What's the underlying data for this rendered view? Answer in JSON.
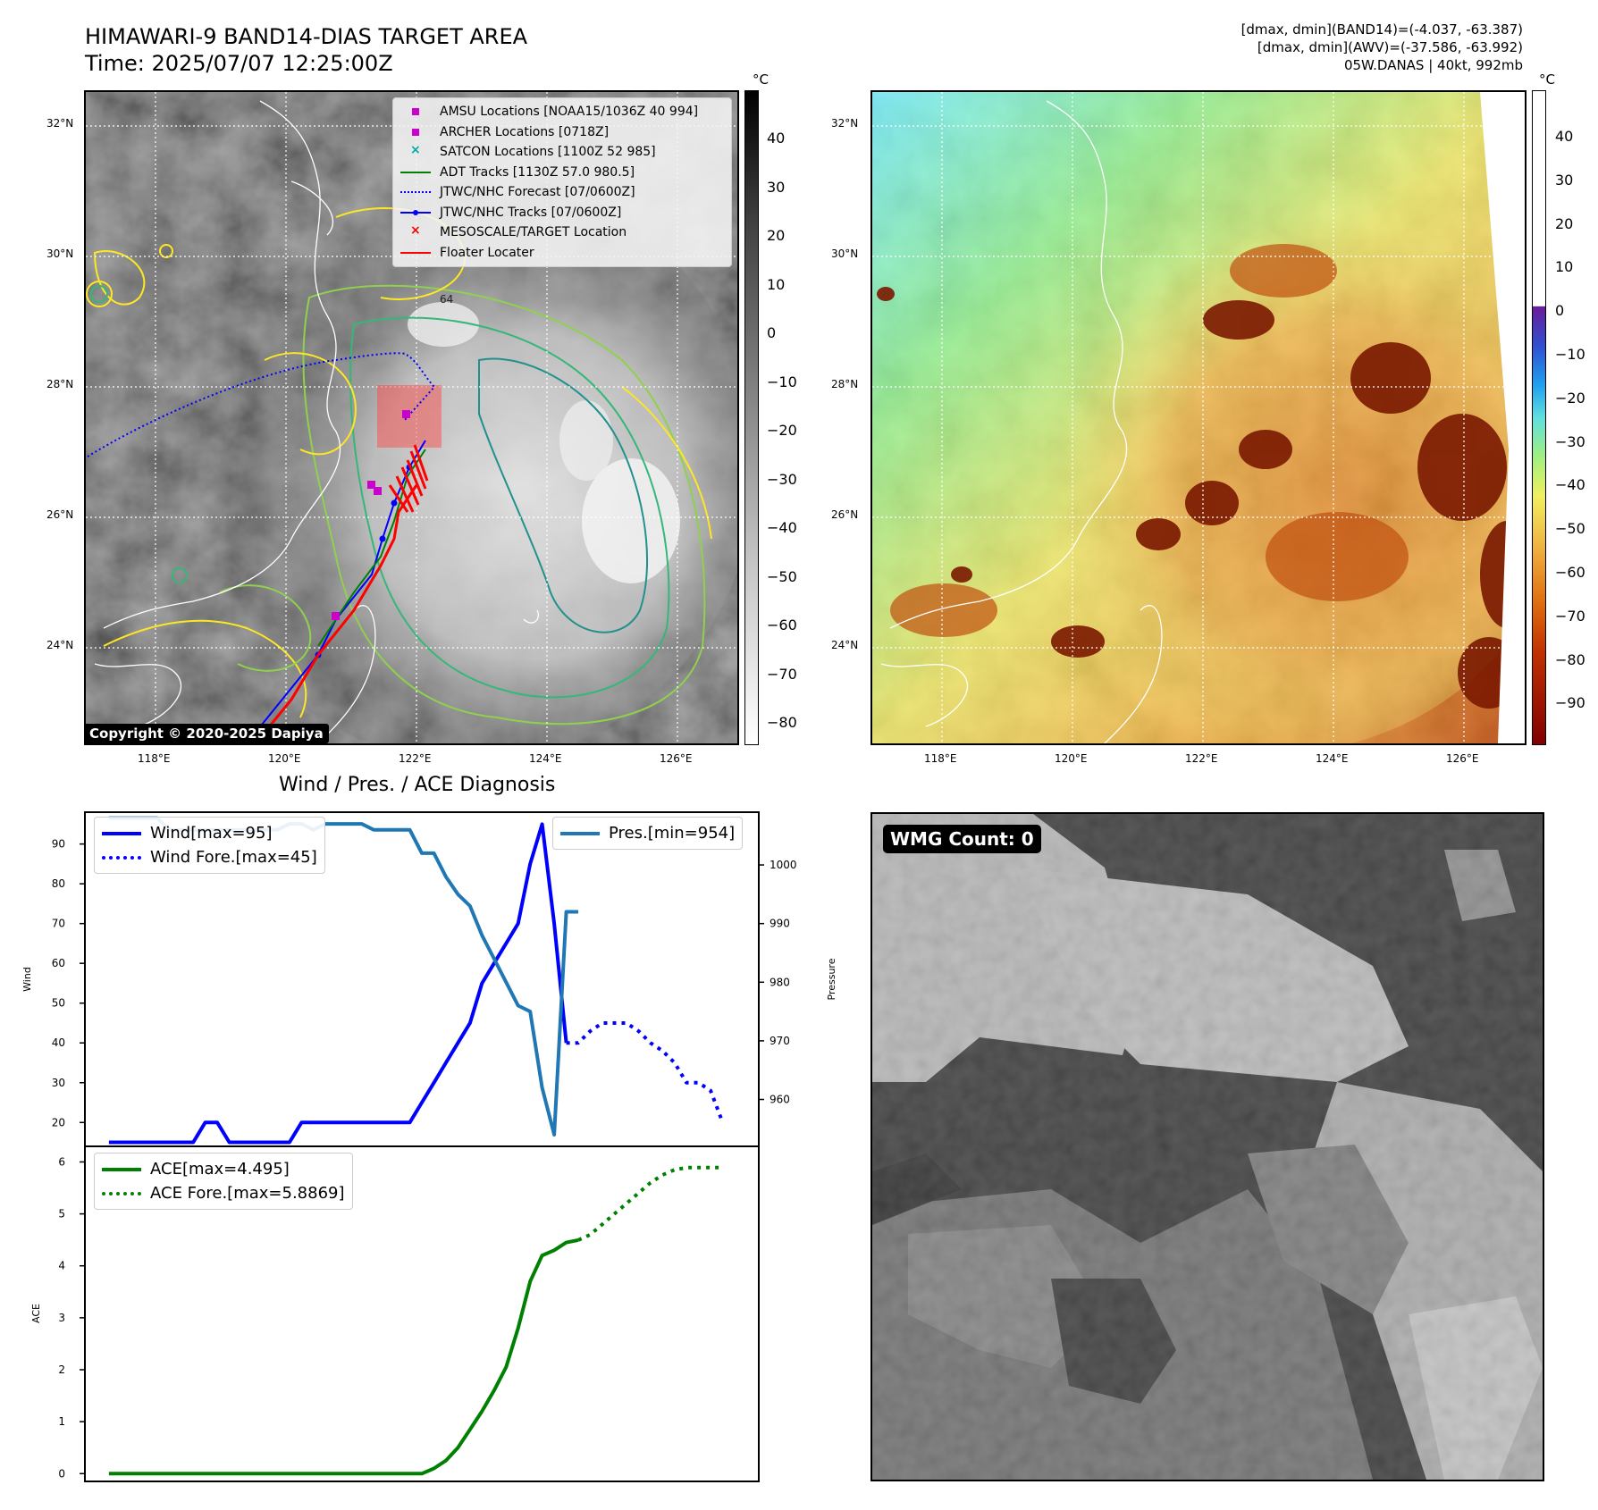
{
  "header": {
    "title_line1": "HIMAWARI-9 BAND14-DIAS TARGET AREA",
    "title_line2": "Time: 2025/07/07 12:25:00Z",
    "info_line1": "[dmax, dmin](BAND14)=(-4.037, -63.387)",
    "info_line2": "[dmax, dmin](AWV)=(-37.586, -63.992)",
    "info_line3": "05W.DANAS | 40kt, 992mb"
  },
  "map": {
    "lat_labels": [
      "32°N",
      "30°N",
      "28°N",
      "26°N",
      "24°N"
    ],
    "lon_labels": [
      "118°E",
      "120°E",
      "122°E",
      "124°E",
      "126°E"
    ],
    "copyright": "Copyright © 2020-2025 Dapiya",
    "contour_label": "64",
    "legend": [
      {
        "label": "AMSU Locations [NOAA15/1036Z 40 994]",
        "symbol": "square",
        "color": "#cc00cc"
      },
      {
        "label": "ARCHER Locations [0718Z]",
        "symbol": "square",
        "color": "#cc00cc"
      },
      {
        "label": "SATCON Locations [1100Z 52 985]",
        "symbol": "x",
        "color": "#00aaaa"
      },
      {
        "label": "ADT Tracks [1130Z 57.0 980.5]",
        "symbol": "line",
        "color": "#008000"
      },
      {
        "label": "JTWC/NHC Forecast [07/0600Z]",
        "symbol": "dotted",
        "color": "#0000ff"
      },
      {
        "label": "JTWC/NHC Tracks [07/0600Z]",
        "symbol": "line-dot",
        "color": "#0000ff"
      },
      {
        "label": "MESOSCALE/TARGET Location",
        "symbol": "x",
        "color": "#ff0000"
      },
      {
        "label": "Floater Locater",
        "symbol": "line",
        "color": "#ff0000"
      }
    ]
  },
  "colorbar_gray": {
    "unit": "°C",
    "labels": [
      "40",
      "30",
      "20",
      "10",
      "0",
      "−10",
      "−20",
      "−30",
      "−40",
      "−50",
      "−60",
      "−70",
      "−80"
    ]
  },
  "colorbar_color": {
    "unit": "°C",
    "labels": [
      "40",
      "30",
      "20",
      "10",
      "0",
      "−10",
      "−20",
      "−30",
      "−40",
      "−50",
      "−60",
      "−70",
      "−80",
      "−90"
    ]
  },
  "wmg": {
    "badge": "WMG Count: 0"
  },
  "chart_data": {
    "title": "Wind / Pres. / ACE Diagnosis",
    "wind_pres": {
      "type": "line",
      "ylabel_left": "Wind",
      "ylabel_right": "Pressure",
      "ylim_left": [
        14,
        98
      ],
      "ylim_right": [
        952,
        1009
      ],
      "yticks_left": [
        20,
        30,
        40,
        50,
        60,
        70,
        80,
        90
      ],
      "yticks_right": [
        960,
        970,
        980,
        990,
        1000
      ],
      "x_range": [
        -2,
        54
      ],
      "series": [
        {
          "name": "Wind[max=95]",
          "color": "#0000ff",
          "style": "solid",
          "x": [
            0,
            1,
            2,
            3,
            4,
            5,
            6,
            7,
            8,
            9,
            10,
            11,
            12,
            13,
            14,
            15,
            16,
            17,
            18,
            19,
            20,
            21,
            22,
            23,
            24,
            25,
            26,
            27,
            28,
            29,
            30,
            31,
            32,
            33,
            34,
            35,
            36,
            37,
            38
          ],
          "y": [
            15,
            15,
            15,
            15,
            15,
            15,
            15,
            15,
            20,
            20,
            15,
            15,
            15,
            15,
            15,
            15,
            20,
            20,
            20,
            20,
            20,
            20,
            20,
            20,
            20,
            20,
            25,
            30,
            35,
            40,
            45,
            55,
            60,
            65,
            70,
            85,
            95,
            70,
            40
          ]
        },
        {
          "name": "Wind Fore.[max=45]",
          "color": "#0000ff",
          "style": "dotted",
          "x": [
            38,
            39,
            40,
            41,
            42,
            43,
            44,
            45,
            46,
            47,
            48,
            49,
            50,
            51
          ],
          "y": [
            40,
            40,
            43,
            45,
            45,
            45,
            43,
            40,
            38,
            35,
            30,
            30,
            28,
            20
          ]
        },
        {
          "name": "Pres.[min=954]",
          "color": "#1f77b4",
          "style": "solid",
          "x": [
            0,
            1,
            2,
            3,
            4,
            5,
            6,
            7,
            8,
            9,
            10,
            11,
            12,
            13,
            14,
            15,
            16,
            17,
            18,
            19,
            20,
            21,
            22,
            23,
            24,
            25,
            26,
            27,
            28,
            29,
            30,
            31,
            32,
            33,
            34,
            35,
            36,
            37,
            38,
            39
          ],
          "y": [
            1008,
            1008,
            1008,
            1008,
            1008,
            1006,
            1006,
            1006,
            1006,
            1006,
            1006,
            1006,
            1006,
            1006,
            1006,
            1007,
            1007,
            1006,
            1007,
            1007,
            1007,
            1007,
            1006,
            1006,
            1006,
            1006,
            1002,
            1002,
            998,
            995,
            993,
            988,
            984,
            980,
            976,
            975,
            962,
            954,
            992,
            992
          ]
        }
      ]
    },
    "ace": {
      "type": "line",
      "ylabel": "ACE",
      "ylim": [
        -0.15,
        6.3
      ],
      "yticks": [
        0,
        1,
        2,
        3,
        4,
        5,
        6
      ],
      "x_range": [
        -2,
        54
      ],
      "series": [
        {
          "name": "ACE[max=4.495]",
          "color": "#008000",
          "style": "solid",
          "x": [
            0,
            2,
            4,
            6,
            8,
            10,
            12,
            14,
            16,
            18,
            20,
            22,
            24,
            26,
            27,
            28,
            29,
            30,
            31,
            32,
            33,
            34,
            35,
            36,
            37,
            38,
            39
          ],
          "y": [
            0,
            0,
            0,
            0,
            0,
            0,
            0,
            0,
            0,
            0,
            0,
            0,
            0,
            0,
            0.1,
            0.25,
            0.5,
            0.85,
            1.2,
            1.6,
            2.05,
            2.8,
            3.7,
            4.2,
            4.3,
            4.45,
            4.495
          ]
        },
        {
          "name": "ACE Fore.[max=5.8869]",
          "color": "#008000",
          "style": "dotted",
          "x": [
            39,
            40,
            41,
            42,
            43,
            44,
            45,
            46,
            47,
            48,
            49,
            50,
            51
          ],
          "y": [
            4.495,
            4.6,
            4.8,
            5.0,
            5.2,
            5.4,
            5.6,
            5.75,
            5.85,
            5.89,
            5.89,
            5.89,
            5.89
          ]
        }
      ]
    }
  }
}
